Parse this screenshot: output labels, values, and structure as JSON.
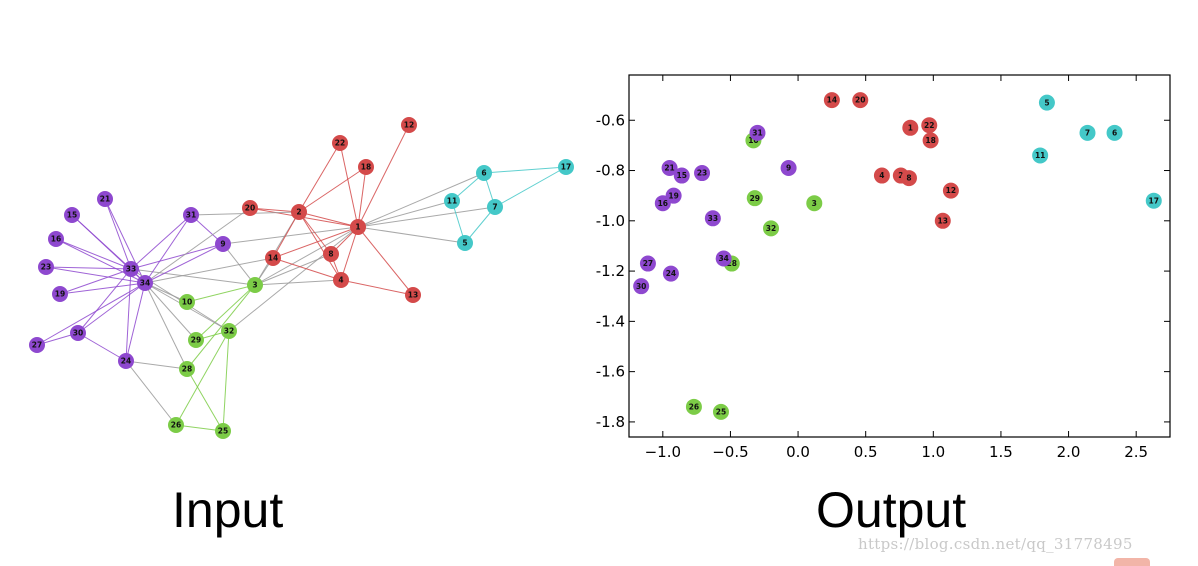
{
  "captions": {
    "input": "Input",
    "output": "Output"
  },
  "watermark": "https://blog.csdn.net/qq_31778495",
  "groups": {
    "purple": "#8e48cf",
    "red": "#d44a4a",
    "green": "#7ccc47",
    "cyan": "#44c8c8"
  },
  "graph": {
    "nodes": [
      {
        "id": "1",
        "group": "red"
      },
      {
        "id": "2",
        "group": "red"
      },
      {
        "id": "3",
        "group": "green"
      },
      {
        "id": "4",
        "group": "red"
      },
      {
        "id": "5",
        "group": "cyan"
      },
      {
        "id": "6",
        "group": "cyan"
      },
      {
        "id": "7",
        "group": "cyan"
      },
      {
        "id": "8",
        "group": "red"
      },
      {
        "id": "9",
        "group": "purple"
      },
      {
        "id": "10",
        "group": "green"
      },
      {
        "id": "11",
        "group": "cyan"
      },
      {
        "id": "12",
        "group": "red"
      },
      {
        "id": "13",
        "group": "red"
      },
      {
        "id": "14",
        "group": "red"
      },
      {
        "id": "15",
        "group": "purple"
      },
      {
        "id": "16",
        "group": "purple"
      },
      {
        "id": "17",
        "group": "cyan"
      },
      {
        "id": "18",
        "group": "red"
      },
      {
        "id": "19",
        "group": "purple"
      },
      {
        "id": "20",
        "group": "red"
      },
      {
        "id": "21",
        "group": "purple"
      },
      {
        "id": "22",
        "group": "red"
      },
      {
        "id": "23",
        "group": "purple"
      },
      {
        "id": "24",
        "group": "purple"
      },
      {
        "id": "25",
        "group": "green"
      },
      {
        "id": "26",
        "group": "green"
      },
      {
        "id": "27",
        "group": "purple"
      },
      {
        "id": "28",
        "group": "green"
      },
      {
        "id": "29",
        "group": "green"
      },
      {
        "id": "30",
        "group": "purple"
      },
      {
        "id": "31",
        "group": "purple"
      },
      {
        "id": "32",
        "group": "green"
      },
      {
        "id": "33",
        "group": "purple"
      },
      {
        "id": "34",
        "group": "purple"
      }
    ],
    "edges": [
      [
        "1",
        "2"
      ],
      [
        "1",
        "3"
      ],
      [
        "1",
        "4"
      ],
      [
        "1",
        "5"
      ],
      [
        "1",
        "6"
      ],
      [
        "1",
        "7"
      ],
      [
        "1",
        "8"
      ],
      [
        "1",
        "9"
      ],
      [
        "1",
        "11"
      ],
      [
        "1",
        "12"
      ],
      [
        "1",
        "13"
      ],
      [
        "1",
        "14"
      ],
      [
        "1",
        "18"
      ],
      [
        "1",
        "20"
      ],
      [
        "1",
        "22"
      ],
      [
        "1",
        "32"
      ],
      [
        "2",
        "3"
      ],
      [
        "2",
        "4"
      ],
      [
        "2",
        "8"
      ],
      [
        "2",
        "14"
      ],
      [
        "2",
        "18"
      ],
      [
        "2",
        "20"
      ],
      [
        "2",
        "22"
      ],
      [
        "2",
        "31"
      ],
      [
        "3",
        "4"
      ],
      [
        "3",
        "8"
      ],
      [
        "3",
        "9"
      ],
      [
        "3",
        "10"
      ],
      [
        "3",
        "14"
      ],
      [
        "3",
        "28"
      ],
      [
        "3",
        "29"
      ],
      [
        "3",
        "33"
      ],
      [
        "4",
        "8"
      ],
      [
        "4",
        "13"
      ],
      [
        "4",
        "14"
      ],
      [
        "5",
        "7"
      ],
      [
        "5",
        "11"
      ],
      [
        "6",
        "7"
      ],
      [
        "6",
        "11"
      ],
      [
        "6",
        "17"
      ],
      [
        "7",
        "17"
      ],
      [
        "9",
        "31"
      ],
      [
        "9",
        "33"
      ],
      [
        "9",
        "34"
      ],
      [
        "10",
        "34"
      ],
      [
        "14",
        "34"
      ],
      [
        "15",
        "33"
      ],
      [
        "15",
        "34"
      ],
      [
        "16",
        "33"
      ],
      [
        "16",
        "34"
      ],
      [
        "19",
        "33"
      ],
      [
        "19",
        "34"
      ],
      [
        "20",
        "34"
      ],
      [
        "21",
        "33"
      ],
      [
        "21",
        "34"
      ],
      [
        "23",
        "33"
      ],
      [
        "23",
        "34"
      ],
      [
        "24",
        "26"
      ],
      [
        "24",
        "28"
      ],
      [
        "24",
        "30"
      ],
      [
        "24",
        "33"
      ],
      [
        "24",
        "34"
      ],
      [
        "25",
        "26"
      ],
      [
        "25",
        "28"
      ],
      [
        "25",
        "32"
      ],
      [
        "26",
        "32"
      ],
      [
        "27",
        "30"
      ],
      [
        "27",
        "34"
      ],
      [
        "28",
        "34"
      ],
      [
        "29",
        "32"
      ],
      [
        "29",
        "34"
      ],
      [
        "30",
        "33"
      ],
      [
        "30",
        "34"
      ],
      [
        "31",
        "33"
      ],
      [
        "31",
        "34"
      ],
      [
        "32",
        "33"
      ],
      [
        "32",
        "34"
      ],
      [
        "33",
        "34"
      ]
    ]
  },
  "chart_data": {
    "type": "scatter",
    "title": "",
    "xlabel": "",
    "ylabel": "",
    "xlim": [
      -1.25,
      2.75
    ],
    "ylim": [
      -1.86,
      -0.42
    ],
    "y_inverted": true,
    "xticks": [
      -1.0,
      -0.5,
      0.0,
      0.5,
      1.0,
      1.5,
      2.0,
      2.5
    ],
    "xtick_labels": [
      "−1.0",
      "−0.5",
      "0.0",
      "0.5",
      "1.0",
      "1.5",
      "2.0",
      "2.5"
    ],
    "yticks": [
      -0.6,
      -0.8,
      -1.0,
      -1.2,
      -1.4,
      -1.6,
      -1.8
    ],
    "ytick_labels": [
      "-0.6",
      "-0.8",
      "-1.0",
      "-1.2",
      "-1.4",
      "-1.6",
      "-1.8"
    ],
    "grid": false,
    "points": [
      {
        "label": "1",
        "group": "red",
        "x": 0.83,
        "y": -0.63
      },
      {
        "label": "2",
        "group": "red",
        "x": 0.76,
        "y": -0.82
      },
      {
        "label": "3",
        "group": "green",
        "x": 0.12,
        "y": -0.93
      },
      {
        "label": "4",
        "group": "red",
        "x": 0.62,
        "y": -0.82
      },
      {
        "label": "5",
        "group": "cyan",
        "x": 1.84,
        "y": -0.53
      },
      {
        "label": "6",
        "group": "cyan",
        "x": 2.34,
        "y": -0.65
      },
      {
        "label": "7",
        "group": "cyan",
        "x": 2.14,
        "y": -0.65
      },
      {
        "label": "8",
        "group": "red",
        "x": 0.82,
        "y": -0.83
      },
      {
        "label": "9",
        "group": "purple",
        "x": -0.07,
        "y": -0.79
      },
      {
        "label": "10",
        "group": "green",
        "x": -0.33,
        "y": -0.68
      },
      {
        "label": "11",
        "group": "cyan",
        "x": 1.79,
        "y": -0.74
      },
      {
        "label": "12",
        "group": "red",
        "x": 1.13,
        "y": -0.88
      },
      {
        "label": "13",
        "group": "red",
        "x": 1.07,
        "y": -1.0
      },
      {
        "label": "14",
        "group": "red",
        "x": 0.25,
        "y": -0.52
      },
      {
        "label": "15",
        "group": "purple",
        "x": -0.86,
        "y": -0.82
      },
      {
        "label": "16",
        "group": "purple",
        "x": -1.0,
        "y": -0.93
      },
      {
        "label": "17",
        "group": "cyan",
        "x": 2.63,
        "y": -0.92
      },
      {
        "label": "18",
        "group": "red",
        "x": 0.98,
        "y": -0.68
      },
      {
        "label": "19",
        "group": "purple",
        "x": -0.92,
        "y": -0.9
      },
      {
        "label": "20",
        "group": "red",
        "x": 0.46,
        "y": -0.52
      },
      {
        "label": "21",
        "group": "purple",
        "x": -0.95,
        "y": -0.79
      },
      {
        "label": "22",
        "group": "red",
        "x": 0.97,
        "y": -0.62
      },
      {
        "label": "23",
        "group": "purple",
        "x": -0.71,
        "y": -0.81
      },
      {
        "label": "24",
        "group": "purple",
        "x": -0.94,
        "y": -1.21
      },
      {
        "label": "25",
        "group": "green",
        "x": -0.57,
        "y": -1.76
      },
      {
        "label": "26",
        "group": "green",
        "x": -0.77,
        "y": -1.74
      },
      {
        "label": "27",
        "group": "purple",
        "x": -1.11,
        "y": -1.17
      },
      {
        "label": "28",
        "group": "green",
        "x": -0.49,
        "y": -1.17
      },
      {
        "label": "29",
        "group": "green",
        "x": -0.32,
        "y": -0.91
      },
      {
        "label": "30",
        "group": "purple",
        "x": -1.16,
        "y": -1.26
      },
      {
        "label": "31",
        "group": "purple",
        "x": -0.3,
        "y": -0.65
      },
      {
        "label": "32",
        "group": "green",
        "x": -0.2,
        "y": -1.03
      },
      {
        "label": "33",
        "group": "purple",
        "x": -0.63,
        "y": -0.99
      },
      {
        "label": "34",
        "group": "purple",
        "x": -0.55,
        "y": -1.15
      }
    ]
  }
}
